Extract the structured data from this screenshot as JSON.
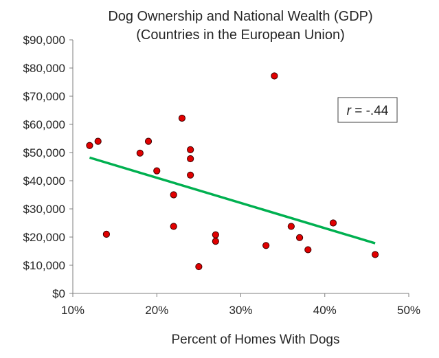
{
  "chart_data": {
    "type": "scatter",
    "title": "Dog Ownership and National Wealth (GDP)",
    "subtitle": "(Countries in the European Union)",
    "xlabel": "Percent of Homes With Dogs",
    "ylabel": "",
    "xlim": [
      0.1,
      0.5
    ],
    "ylim": [
      0,
      90000
    ],
    "x_ticks": [
      0.1,
      0.2,
      0.3,
      0.4,
      0.5
    ],
    "x_tick_labels": [
      "10%",
      "20%",
      "30%",
      "40%",
      "50%"
    ],
    "y_ticks": [
      0,
      10000,
      20000,
      30000,
      40000,
      50000,
      60000,
      70000,
      80000,
      90000
    ],
    "y_tick_labels": [
      "$0",
      "$10,000",
      "$20,000",
      "$30,000",
      "$40,000",
      "$50,000",
      "$60,000",
      "$70,000",
      "$80,000",
      "$90,000"
    ],
    "grid": false,
    "series": [
      {
        "name": "Countries",
        "color": "#e00000",
        "points": [
          {
            "x": 0.12,
            "y": 52500
          },
          {
            "x": 0.13,
            "y": 54000
          },
          {
            "x": 0.14,
            "y": 21000
          },
          {
            "x": 0.18,
            "y": 49800
          },
          {
            "x": 0.19,
            "y": 54000
          },
          {
            "x": 0.2,
            "y": 43500
          },
          {
            "x": 0.22,
            "y": 35000
          },
          {
            "x": 0.22,
            "y": 23800
          },
          {
            "x": 0.23,
            "y": 62200
          },
          {
            "x": 0.24,
            "y": 51000
          },
          {
            "x": 0.24,
            "y": 47800
          },
          {
            "x": 0.24,
            "y": 42000
          },
          {
            "x": 0.25,
            "y": 9500
          },
          {
            "x": 0.27,
            "y": 20800
          },
          {
            "x": 0.27,
            "y": 18500
          },
          {
            "x": 0.33,
            "y": 17000
          },
          {
            "x": 0.34,
            "y": 77200
          },
          {
            "x": 0.36,
            "y": 23800
          },
          {
            "x": 0.37,
            "y": 19800
          },
          {
            "x": 0.38,
            "y": 15500
          },
          {
            "x": 0.41,
            "y": 25000
          },
          {
            "x": 0.46,
            "y": 13800
          }
        ]
      }
    ],
    "trendline": {
      "color": "#00b050",
      "x": [
        0.12,
        0.46
      ],
      "y": [
        48200,
        17800
      ]
    },
    "annotation": {
      "variable": "r",
      "value_text": " = -.44"
    }
  }
}
